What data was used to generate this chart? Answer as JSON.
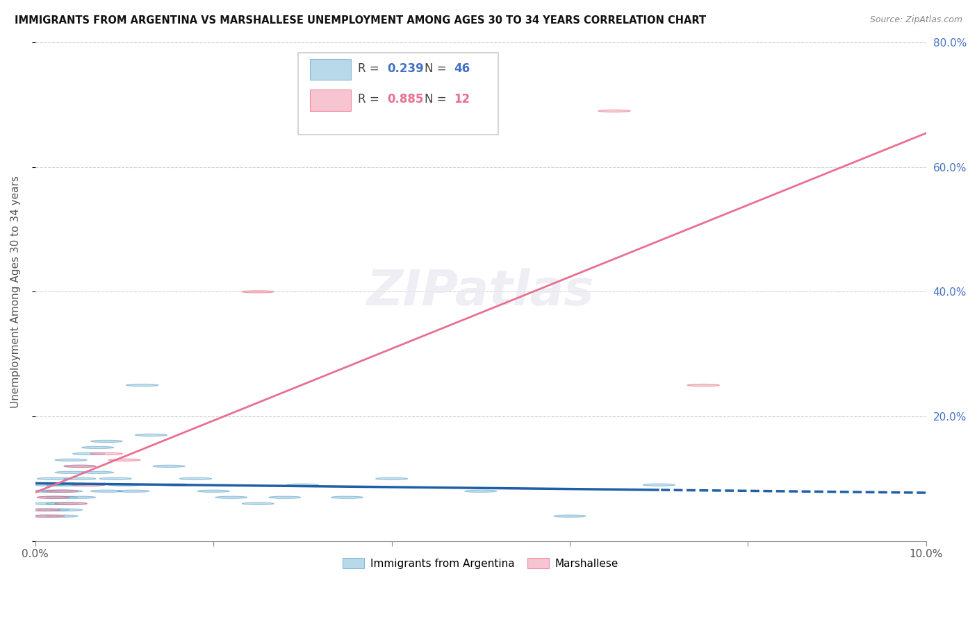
{
  "title": "IMMIGRANTS FROM ARGENTINA VS MARSHALLESE UNEMPLOYMENT AMONG AGES 30 TO 34 YEARS CORRELATION CHART",
  "source": "Source: ZipAtlas.com",
  "ylabel": "Unemployment Among Ages 30 to 34 years",
  "legend_label1": "Immigrants from Argentina",
  "legend_label2": "Marshallese",
  "R1": 0.239,
  "N1": 46,
  "R2": 0.885,
  "N2": 12,
  "color1": "#92c5de",
  "color2": "#f4a7b9",
  "color1_edge": "#5a9fc8",
  "color2_edge": "#e8607a",
  "line_color1": "#1f5fa6",
  "line_color2": "#e87090",
  "xlim": [
    0,
    0.1
  ],
  "ylim": [
    0,
    0.8
  ],
  "x_ticks": [
    0.0,
    0.02,
    0.04,
    0.06,
    0.08,
    0.1
  ],
  "x_tick_labels": [
    "0.0%",
    "",
    "",
    "",
    "",
    "10.0%"
  ],
  "y_ticks": [
    0.0,
    0.2,
    0.4,
    0.6,
    0.8
  ],
  "y_tick_labels_right": [
    "",
    "20.0%",
    "40.0%",
    "60.0%",
    "80.0%"
  ],
  "argentina_x": [
    0.0005,
    0.001,
    0.001,
    0.0015,
    0.0015,
    0.002,
    0.002,
    0.002,
    0.0025,
    0.003,
    0.003,
    0.003,
    0.003,
    0.0035,
    0.0035,
    0.004,
    0.004,
    0.004,
    0.004,
    0.005,
    0.005,
    0.005,
    0.006,
    0.006,
    0.007,
    0.007,
    0.008,
    0.008,
    0.009,
    0.01,
    0.011,
    0.012,
    0.013,
    0.015,
    0.016,
    0.018,
    0.02,
    0.022,
    0.025,
    0.028,
    0.03,
    0.035,
    0.04,
    0.05,
    0.06,
    0.07
  ],
  "argentina_y": [
    0.05,
    0.04,
    0.08,
    0.06,
    0.09,
    0.05,
    0.07,
    0.1,
    0.08,
    0.04,
    0.06,
    0.07,
    0.09,
    0.05,
    0.08,
    0.06,
    0.09,
    0.11,
    0.13,
    0.07,
    0.1,
    0.12,
    0.09,
    0.14,
    0.11,
    0.15,
    0.08,
    0.16,
    0.1,
    0.09,
    0.08,
    0.25,
    0.17,
    0.12,
    0.09,
    0.1,
    0.08,
    0.07,
    0.06,
    0.07,
    0.09,
    0.07,
    0.1,
    0.08,
    0.04,
    0.09
  ],
  "marshallese_x": [
    0.001,
    0.0015,
    0.002,
    0.003,
    0.004,
    0.005,
    0.006,
    0.008,
    0.01,
    0.025,
    0.065,
    0.075
  ],
  "marshallese_y": [
    0.05,
    0.04,
    0.07,
    0.08,
    0.06,
    0.12,
    0.09,
    0.14,
    0.13,
    0.4,
    0.69,
    0.25
  ]
}
